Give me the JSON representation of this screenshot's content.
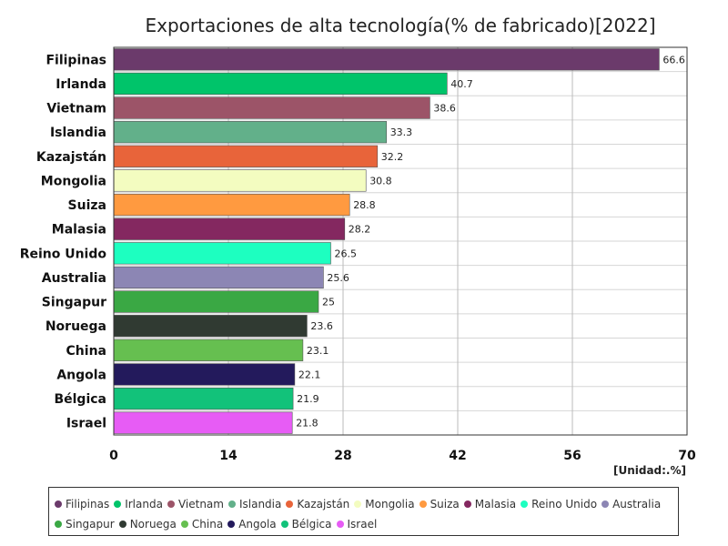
{
  "chart_data": {
    "type": "bar",
    "orientation": "horizontal",
    "title": "Exportaciones de alta tecnología(% de fabricado)[2022]",
    "unit": "[Unidad:.%]",
    "categories": [
      "Filipinas",
      "Irlanda",
      "Vietnam",
      "Islandia",
      "Kazajstán",
      "Mongolia",
      "Suiza",
      "Malasia",
      "Reino Unido",
      "Australia",
      "Singapur",
      "Noruega",
      "China",
      "Angola",
      "Bélgica",
      "Israel"
    ],
    "values": [
      66.6,
      40.7,
      38.6,
      33.3,
      32.2,
      30.8,
      28.8,
      28.2,
      26.5,
      25.6,
      25,
      23.6,
      23.1,
      22.1,
      21.9,
      21.8
    ],
    "value_labels": [
      "66.6",
      "40.7",
      "38.6",
      "33.3",
      "32.2",
      "30.8",
      "28.8",
      "28.2",
      "26.5",
      "25.6",
      "25",
      "23.6",
      "23.1",
      "22.1",
      "21.9",
      "21.8"
    ],
    "colors": [
      "#6b3a6b",
      "#00c46a",
      "#9c5468",
      "#62b08a",
      "#e8643a",
      "#f3fcc0",
      "#ff9a40",
      "#842860",
      "#1dffc0",
      "#8c86b4",
      "#3aa844",
      "#303a32",
      "#66bf50",
      "#231a5c",
      "#12c27a",
      "#e75cf5"
    ],
    "xlim": [
      0,
      70
    ],
    "xticks": [
      0,
      14,
      28,
      42,
      56,
      70
    ],
    "xtick_labels": [
      "0",
      "14",
      "28",
      "42",
      "56",
      "70"
    ],
    "grid": true,
    "legend_position": "bottom"
  }
}
